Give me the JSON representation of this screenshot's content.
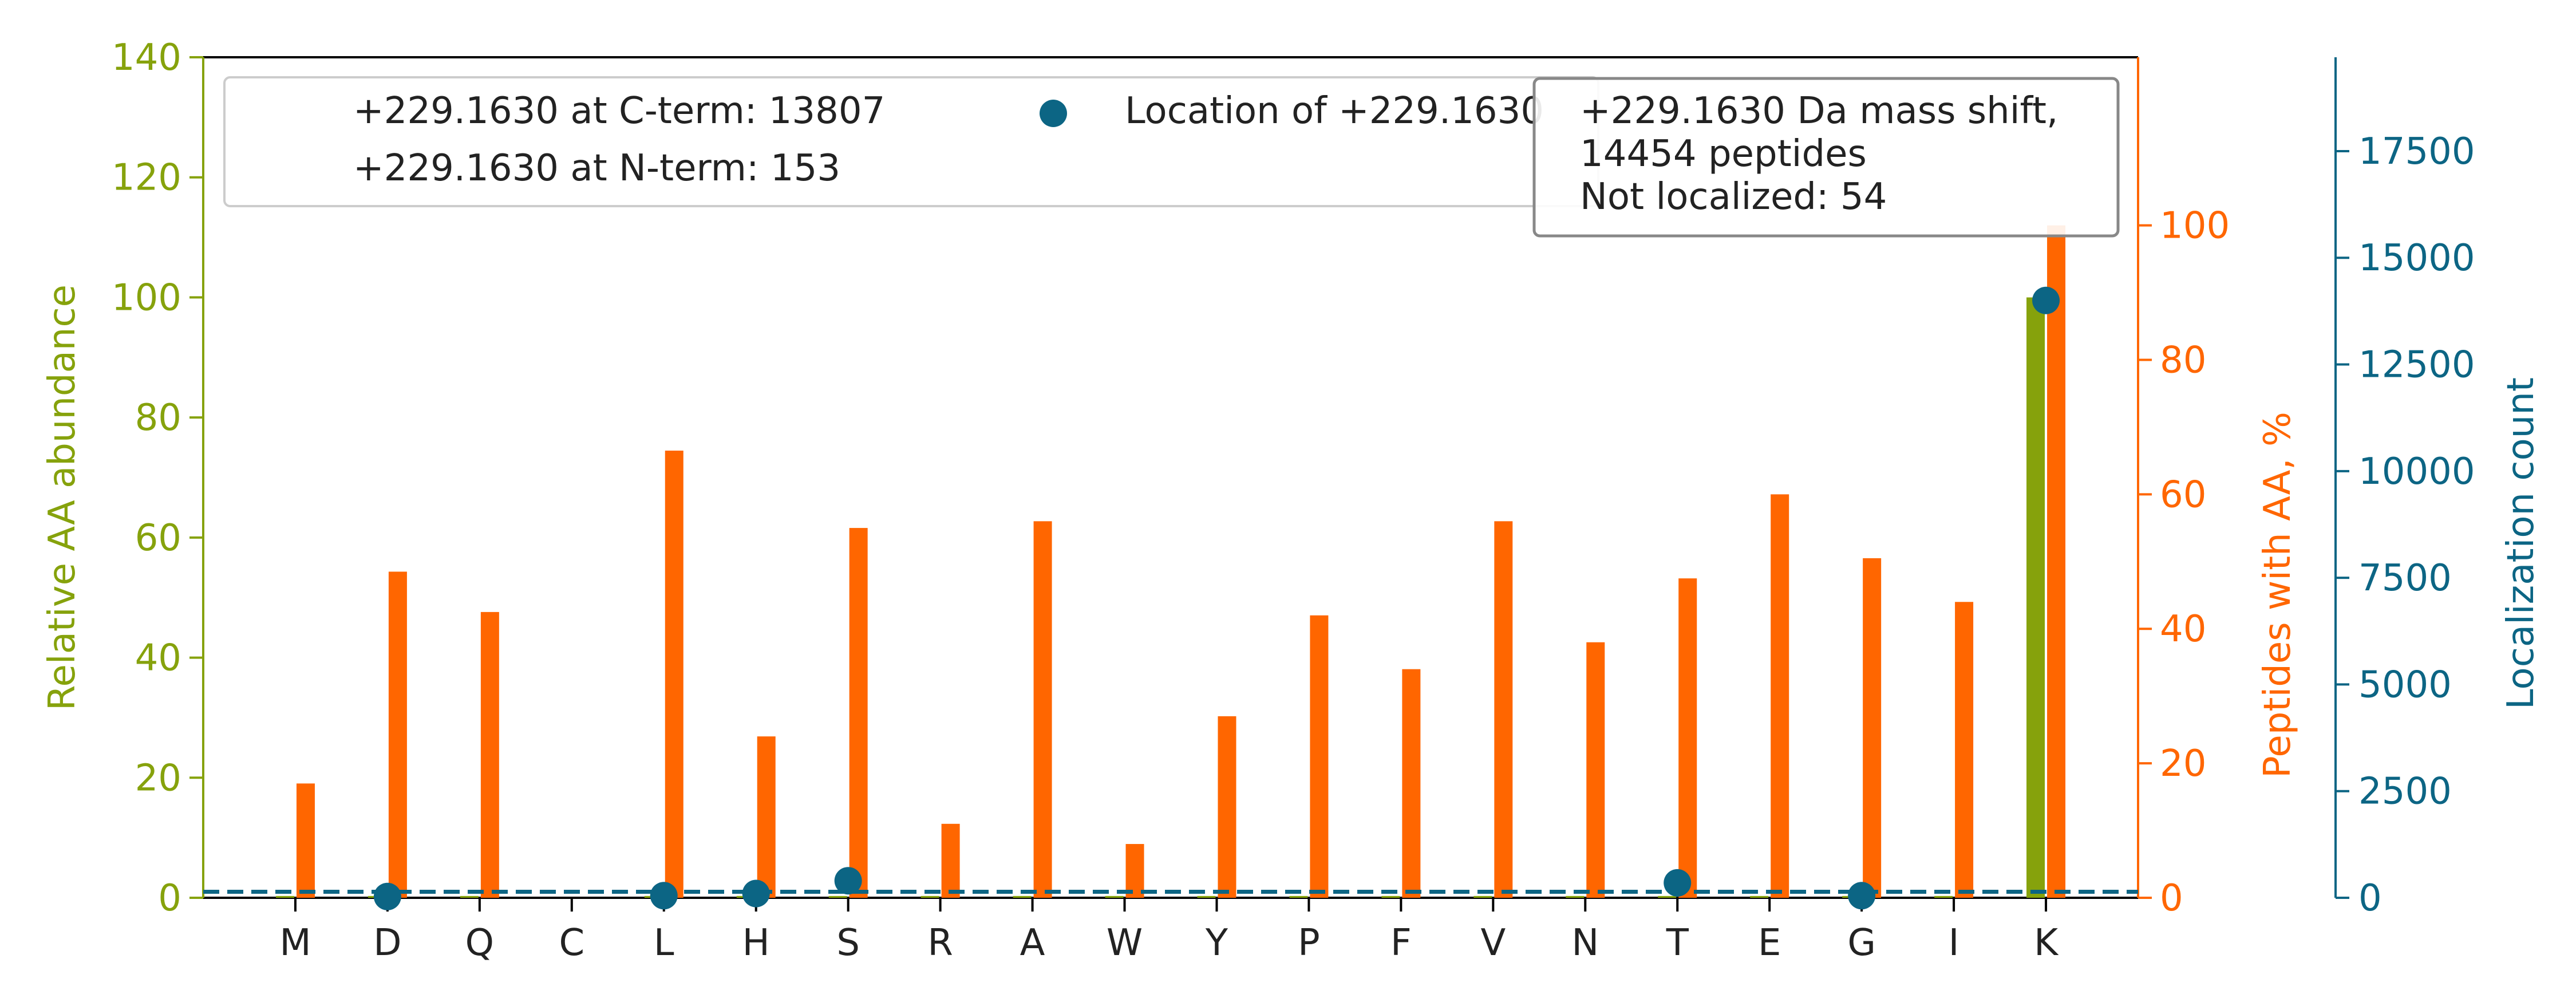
{
  "chart_data": {
    "type": "bar",
    "categories": [
      "M",
      "D",
      "Q",
      "C",
      "L",
      "H",
      "S",
      "R",
      "A",
      "W",
      "Y",
      "P",
      "F",
      "V",
      "N",
      "T",
      "E",
      "G",
      "I",
      "K"
    ],
    "series": [
      {
        "axis": "left",
        "color": "#86a20c",
        "values": [
          0.3,
          0.3,
          0.3,
          0,
          0.3,
          0.3,
          0.3,
          0.3,
          0.3,
          0.3,
          0.3,
          0.3,
          0.3,
          0.3,
          0.3,
          0.3,
          0.3,
          0.3,
          0.3,
          100
        ]
      },
      {
        "axis": "right",
        "color": "#ff6600",
        "values": [
          17,
          48.5,
          42.5,
          0,
          66.5,
          24,
          55,
          11,
          56,
          8,
          27,
          42,
          34,
          56,
          38,
          47.5,
          60,
          50.5,
          44,
          100
        ]
      },
      {
        "name": "Location of +229.1630",
        "axis": "right2",
        "type": "scatter",
        "color": "#0c6584",
        "values": [
          0,
          30,
          0,
          0,
          50,
          100,
          400,
          0,
          0,
          0,
          0,
          0,
          0,
          0,
          0,
          350,
          0,
          50,
          0,
          14000
        ]
      }
    ],
    "baseline": {
      "axis": "left",
      "value": 1,
      "style": "dashed",
      "color": "#0c6584"
    },
    "ylabel": "Relative AA abundance",
    "ylabel_right": "Peptides with AA, %",
    "ylabel_right2": "Localization count",
    "ylim": [
      0,
      140
    ],
    "ylim_right": [
      0,
      125
    ],
    "ylim_right2": [
      0,
      19700
    ],
    "yticks": [
      "0",
      "20",
      "40",
      "60",
      "80",
      "100",
      "120",
      "140"
    ],
    "yticks_right": [
      "0",
      "20",
      "40",
      "60",
      "80",
      "100"
    ],
    "yticks_right2": [
      "0",
      "2500",
      "5000",
      "7500",
      "10000",
      "12500",
      "15000",
      "17500"
    ],
    "legend": {
      "entries": [
        "+229.1630 at C-term: 13807",
        "+229.1630 at N-term: 153",
        "Location of +229.1630"
      ],
      "placement": "top"
    },
    "annotation": {
      "lines": [
        "+229.1630 Da mass shift,",
        "14454 peptides",
        "Not localized: 54"
      ],
      "placement": "top-right"
    },
    "grid": false,
    "colors": {
      "left_axis": "#86a20c",
      "right_axis": "#ff6600",
      "right2_axis": "#0c6584",
      "text": "#222222"
    }
  }
}
